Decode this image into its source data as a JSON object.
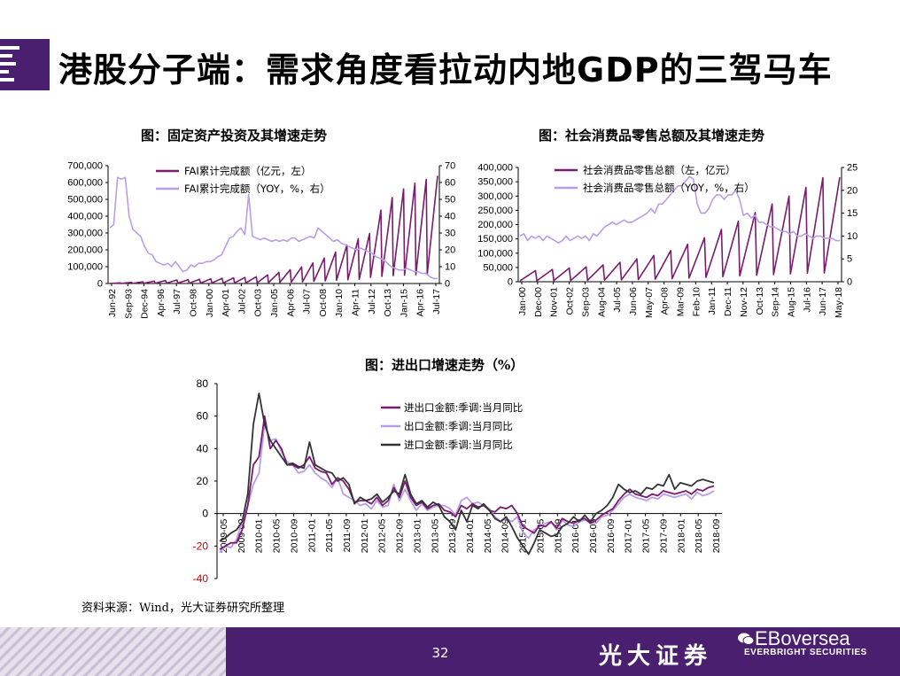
{
  "page": {
    "title": "港股分子端：需求角度看拉动内地GDP的三驾马车",
    "source": "资料来源：Wind，光大证券研究所整理",
    "page_number": "32",
    "brand_cn": "光大证券",
    "brand_en": "EBoversea",
    "brand_sub": "EVERBRIGHT SECURITIES",
    "colors": {
      "dark_purple": "#7b1a6e",
      "light_purple": "#b89ee6",
      "black": "#333333",
      "brand": "#4b1f6f",
      "negative": "#d00000"
    }
  },
  "chart_data": [
    {
      "id": "fai",
      "type": "line",
      "title": "图：固定资产投资及其增速走势",
      "y_left": {
        "ticks": [
          "700,000",
          "600,000",
          "500,000",
          "400,000",
          "300,000",
          "200,000",
          "100,000",
          "0"
        ],
        "min": 0,
        "max": 700000
      },
      "y_right": {
        "ticks": [
          "70",
          "60",
          "50",
          "40",
          "30",
          "20",
          "10",
          "0"
        ],
        "min": 0,
        "max": 70
      },
      "x_labels": [
        "Jun-92",
        "Sep-93",
        "Dec-94",
        "Apr-96",
        "Jul-97",
        "Oct-98",
        "Jan-00",
        "Apr-01",
        "Jul-02",
        "Oct-03",
        "Jan-05",
        "Apr-06",
        "Jul-07",
        "Oct-08",
        "Jan-10",
        "Apr-11",
        "Jul-12",
        "Oct-13",
        "Jan-15",
        "Apr-16",
        "Jul-17"
      ],
      "series": [
        {
          "name": "FAI累计完成额（亿元，左）",
          "axis": "left",
          "color": "#7b1a6e",
          "pattern": "sawtooth",
          "year_end_values": [
            4000,
            7000,
            10000,
            14000,
            18000,
            21000,
            23000,
            25000,
            28000,
            31000,
            34000,
            36000,
            40000,
            51000,
            66000,
            82000,
            98000,
            122000,
            151000,
            187000,
            229000,
            266000,
            297000,
            436000,
            511000,
            562000,
            596000,
            619000,
            640000
          ]
        },
        {
          "name": "FAI累计完成额（YOY，%，右）",
          "axis": "right",
          "color": "#b89ee6",
          "values": [
            33,
            35,
            63,
            62,
            63,
            40,
            32,
            30,
            28,
            22,
            18,
            17,
            13,
            12,
            11,
            12,
            10,
            13,
            10,
            7,
            8,
            11,
            10,
            12,
            12,
            13,
            13,
            14,
            16,
            17,
            22,
            27,
            28,
            31,
            33,
            29,
            53,
            28,
            27,
            26,
            27,
            26,
            25,
            26,
            25,
            26,
            25,
            27,
            27,
            25,
            26,
            27,
            28,
            27,
            33,
            31,
            29,
            27,
            25,
            26,
            24,
            23,
            22,
            21,
            20,
            21,
            20,
            19,
            18,
            16,
            15,
            14,
            12,
            10,
            9,
            8,
            8,
            9,
            8,
            7,
            7,
            6,
            6,
            4,
            3,
            3
          ]
        }
      ]
    },
    {
      "id": "retail",
      "type": "line",
      "title": "图：社会消费品零售总额及其增速走势",
      "y_left": {
        "ticks": [
          "400,000",
          "350,000",
          "300,000",
          "250,000",
          "200,000",
          "150,000",
          "100,000",
          "50,000",
          "0"
        ],
        "min": 0,
        "max": 400000
      },
      "y_right": {
        "ticks": [
          "25",
          "20",
          "15",
          "10",
          "5",
          "0"
        ],
        "min": 0,
        "max": 25
      },
      "x_labels": [
        "Jan-00",
        "Dec-00",
        "Nov-01",
        "Oct-02",
        "Sep-03",
        "Aug-04",
        "Jul-05",
        "Jun-06",
        "May-07",
        "Apr-08",
        "Mar-09",
        "Feb-10",
        "Jan-11",
        "Dec-11",
        "Nov-12",
        "Oct-13",
        "Sep-14",
        "Aug-15",
        "Jul-16",
        "Jun-17",
        "May-18"
      ],
      "series": [
        {
          "name": "社会消费品零售总额（左，亿元）",
          "axis": "left",
          "color": "#7b1a6e",
          "pattern": "sawtooth",
          "year_end_values": [
            39000,
            43000,
            48000,
            52000,
            59000,
            68000,
            80000,
            92000,
            109000,
            131000,
            154000,
            183000,
            212000,
            242000,
            272000,
            300000,
            330000,
            364000,
            366000
          ]
        },
        {
          "name": "社会消费品零售总额（YOY，%，右）",
          "axis": "right",
          "color": "#b89ee6",
          "values": [
            10,
            10.5,
            9,
            10,
            9.5,
            10,
            9,
            10,
            9.5,
            9,
            8.5,
            9,
            10,
            9,
            9.5,
            10,
            9.5,
            10,
            9,
            10.5,
            10,
            11,
            12,
            12.5,
            13,
            12.5,
            13,
            13.5,
            13,
            13,
            13.5,
            14,
            14.5,
            15,
            16,
            15,
            17,
            17,
            18,
            19,
            20,
            21,
            21,
            22,
            23,
            22.5,
            17,
            15,
            15,
            16,
            18,
            19,
            19,
            18,
            19,
            19,
            20,
            18,
            14.5,
            15,
            14,
            14.5,
            13,
            13,
            12.5,
            12,
            12,
            11.5,
            11,
            11,
            10.5,
            11,
            10,
            10,
            10.5,
            10,
            9.5,
            10,
            10,
            9.5,
            9.5,
            9.5,
            9,
            9
          ]
        }
      ]
    },
    {
      "id": "trade",
      "type": "line",
      "title": "图：进出口增速走势（%）",
      "y": {
        "ticks": [
          "80",
          "60",
          "40",
          "20",
          "0",
          "-20",
          "-40"
        ],
        "min": -40,
        "max": 80
      },
      "x_labels": [
        "2009-05",
        "2009-09",
        "2010-01",
        "2010-05",
        "2010-09",
        "2011-01",
        "2011-05",
        "2011-09",
        "2012-01",
        "2012-05",
        "2012-09",
        "2013-01",
        "2013-05",
        "2013-09",
        "2014-01",
        "2014-05",
        "2014-09",
        "2015-01",
        "2015-05",
        "2015-09",
        "2016-01",
        "2016-05",
        "2016-09",
        "2017-01",
        "2017-05",
        "2017-09",
        "2018-01",
        "2018-05",
        "2018-09"
      ],
      "series": [
        {
          "name": "进出口金额:季调:当月同比",
          "color": "#7b1a6e",
          "values": [
            -22,
            -20,
            -18,
            -18,
            -10,
            5,
            30,
            35,
            60,
            40,
            45,
            40,
            30,
            30,
            28,
            30,
            35,
            28,
            26,
            25,
            18,
            22,
            20,
            15,
            7,
            8,
            8,
            6,
            10,
            5,
            8,
            16,
            10,
            20,
            10,
            5,
            7,
            3,
            5,
            6,
            2,
            1,
            -2,
            5,
            3,
            6,
            4,
            5,
            2,
            1,
            4,
            3,
            5,
            0,
            -8,
            -10,
            -12,
            -7,
            -8,
            -5,
            -9,
            -3,
            -5,
            -6,
            -4,
            -3,
            -6,
            -4,
            -1,
            1,
            3,
            8,
            12,
            15,
            12,
            11,
            10,
            12,
            11,
            14,
            13,
            12,
            13,
            14,
            12,
            15,
            14,
            16,
            17
          ]
        },
        {
          "name": "出口金额:季调:当月同比",
          "color": "#b89ee6",
          "values": [
            -24,
            -20,
            -21,
            -16,
            -5,
            5,
            18,
            25,
            55,
            45,
            46,
            38,
            32,
            30,
            25,
            26,
            30,
            25,
            22,
            20,
            16,
            22,
            12,
            10,
            8,
            5,
            6,
            3,
            8,
            4,
            5,
            18,
            8,
            15,
            8,
            2,
            6,
            2,
            4,
            5,
            5,
            3,
            -1,
            8,
            10,
            6,
            7,
            5,
            3,
            -2,
            -5,
            -3,
            -5,
            -2,
            -12,
            -15,
            -10,
            -8,
            -6,
            -5,
            -10,
            -4,
            -7,
            -8,
            -5,
            -4,
            -5,
            -6,
            -2,
            -1,
            2,
            6,
            10,
            12,
            10,
            9,
            8,
            10,
            9,
            12,
            11,
            10,
            11,
            12,
            9,
            13,
            11,
            12,
            14
          ]
        },
        {
          "name": "进口金额:季调:当月同比",
          "color": "#333333",
          "values": [
            -17,
            -15,
            -12,
            -10,
            -5,
            12,
            55,
            74,
            55,
            45,
            40,
            35,
            30,
            31,
            29,
            28,
            44,
            30,
            28,
            26,
            25,
            20,
            22,
            18,
            6,
            10,
            8,
            9,
            12,
            7,
            10,
            14,
            12,
            24,
            12,
            6,
            8,
            4,
            7,
            5,
            -2,
            -5,
            -10,
            2,
            -5,
            5,
            3,
            6,
            2,
            -3,
            -5,
            -2,
            -8,
            -15,
            -20,
            -25,
            -18,
            -10,
            -12,
            -14,
            -13,
            -8,
            -6,
            -2,
            -5,
            -1,
            -5,
            0,
            2,
            5,
            10,
            18,
            15,
            13,
            14,
            12,
            16,
            15,
            18,
            17,
            24,
            15,
            19,
            18,
            17,
            20,
            21,
            20,
            19
          ]
        }
      ]
    }
  ]
}
